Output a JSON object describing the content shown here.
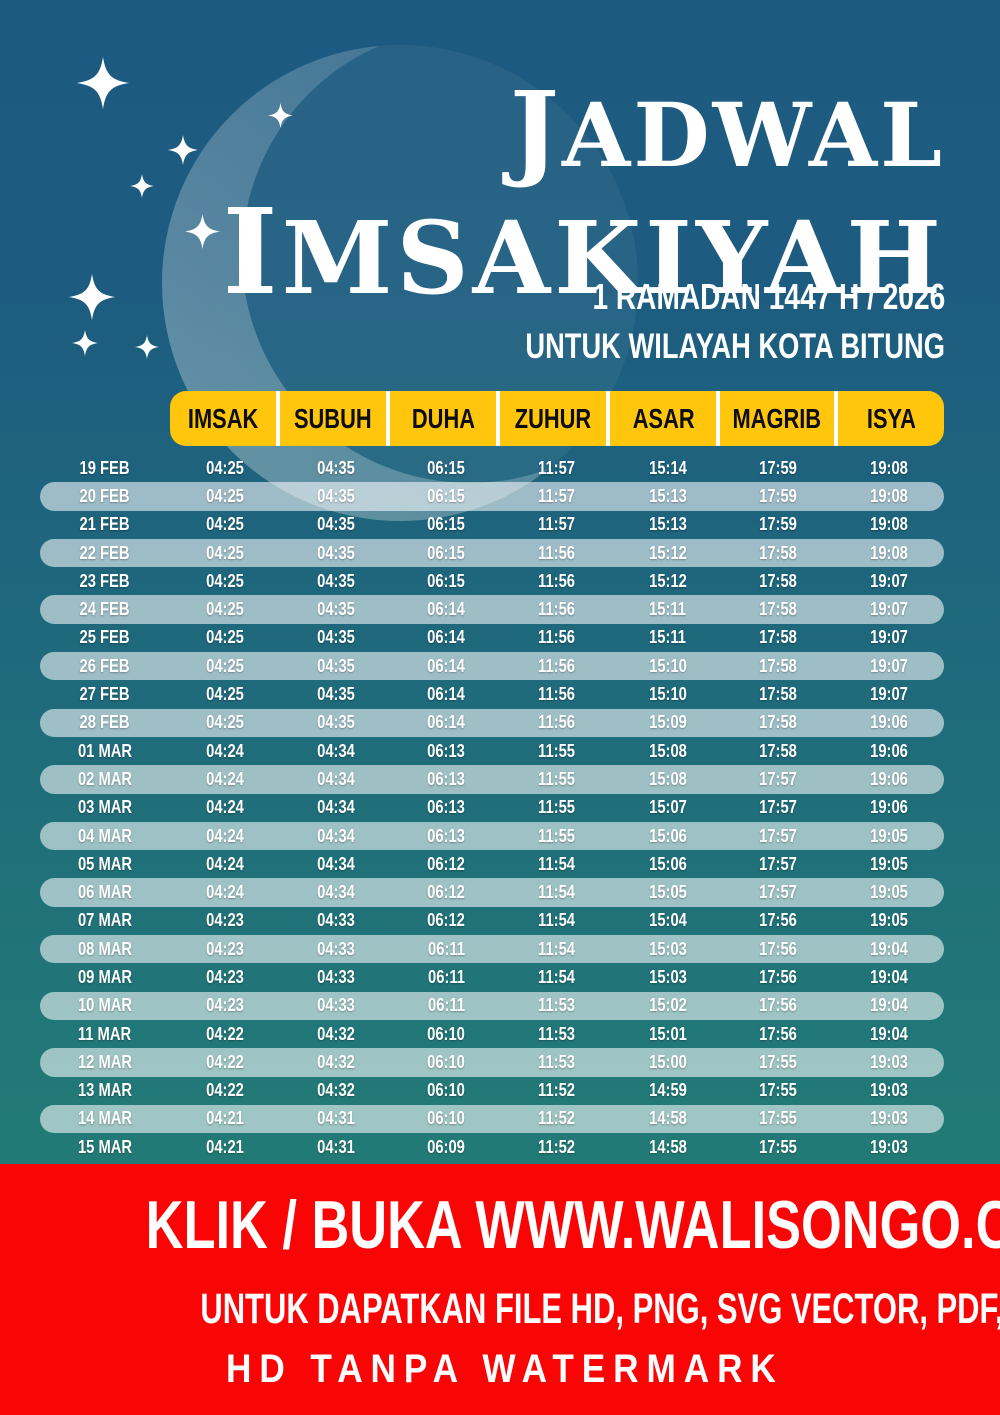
{
  "poster": {
    "title_line1": "JADWAL",
    "title_line2": "IMSAKIYAH",
    "subtitle_line1": "1 RAMADAN 1447 H / 2026",
    "subtitle_line2": "UNTUK WILAYAH KOTA BITUNG"
  },
  "table": {
    "columns": [
      "IMSAK",
      "SUBUH",
      "DUHA",
      "ZUHUR",
      "ASAR",
      "MAGRIB",
      "ISYA"
    ],
    "rows": [
      {
        "date": "19 FEB",
        "times": [
          "04:25",
          "04:35",
          "06:15",
          "11:57",
          "15:14",
          "17:59",
          "19:08"
        ]
      },
      {
        "date": "20 FEB",
        "times": [
          "04:25",
          "04:35",
          "06:15",
          "11:57",
          "15:13",
          "17:59",
          "19:08"
        ]
      },
      {
        "date": "21 FEB",
        "times": [
          "04:25",
          "04:35",
          "06:15",
          "11:57",
          "15:13",
          "17:59",
          "19:08"
        ]
      },
      {
        "date": "22 FEB",
        "times": [
          "04:25",
          "04:35",
          "06:15",
          "11:56",
          "15:12",
          "17:58",
          "19:08"
        ]
      },
      {
        "date": "23 FEB",
        "times": [
          "04:25",
          "04:35",
          "06:15",
          "11:56",
          "15:12",
          "17:58",
          "19:07"
        ]
      },
      {
        "date": "24 FEB",
        "times": [
          "04:25",
          "04:35",
          "06:14",
          "11:56",
          "15:11",
          "17:58",
          "19:07"
        ]
      },
      {
        "date": "25 FEB",
        "times": [
          "04:25",
          "04:35",
          "06:14",
          "11:56",
          "15:11",
          "17:58",
          "19:07"
        ]
      },
      {
        "date": "26 FEB",
        "times": [
          "04:25",
          "04:35",
          "06:14",
          "11:56",
          "15:10",
          "17:58",
          "19:07"
        ]
      },
      {
        "date": "27 FEB",
        "times": [
          "04:25",
          "04:35",
          "06:14",
          "11:56",
          "15:10",
          "17:58",
          "19:07"
        ]
      },
      {
        "date": "28 FEB",
        "times": [
          "04:25",
          "04:35",
          "06:14",
          "11:56",
          "15:09",
          "17:58",
          "19:06"
        ]
      },
      {
        "date": "01 MAR",
        "times": [
          "04:24",
          "04:34",
          "06:13",
          "11:55",
          "15:08",
          "17:58",
          "19:06"
        ]
      },
      {
        "date": "02 MAR",
        "times": [
          "04:24",
          "04:34",
          "06:13",
          "11:55",
          "15:08",
          "17:57",
          "19:06"
        ]
      },
      {
        "date": "03 MAR",
        "times": [
          "04:24",
          "04:34",
          "06:13",
          "11:55",
          "15:07",
          "17:57",
          "19:06"
        ]
      },
      {
        "date": "04 MAR",
        "times": [
          "04:24",
          "04:34",
          "06:13",
          "11:55",
          "15:06",
          "17:57",
          "19:05"
        ]
      },
      {
        "date": "05 MAR",
        "times": [
          "04:24",
          "04:34",
          "06:12",
          "11:54",
          "15:06",
          "17:57",
          "19:05"
        ]
      },
      {
        "date": "06 MAR",
        "times": [
          "04:24",
          "04:34",
          "06:12",
          "11:54",
          "15:05",
          "17:57",
          "19:05"
        ]
      },
      {
        "date": "07 MAR",
        "times": [
          "04:23",
          "04:33",
          "06:12",
          "11:54",
          "15:04",
          "17:56",
          "19:05"
        ]
      },
      {
        "date": "08 MAR",
        "times": [
          "04:23",
          "04:33",
          "06:11",
          "11:54",
          "15:03",
          "17:56",
          "19:04"
        ]
      },
      {
        "date": "09 MAR",
        "times": [
          "04:23",
          "04:33",
          "06:11",
          "11:54",
          "15:03",
          "17:56",
          "19:04"
        ]
      },
      {
        "date": "10 MAR",
        "times": [
          "04:23",
          "04:33",
          "06:11",
          "11:53",
          "15:02",
          "17:56",
          "19:04"
        ]
      },
      {
        "date": "11 MAR",
        "times": [
          "04:22",
          "04:32",
          "06:10",
          "11:53",
          "15:01",
          "17:56",
          "19:04"
        ]
      },
      {
        "date": "12 MAR",
        "times": [
          "04:22",
          "04:32",
          "06:10",
          "11:53",
          "15:00",
          "17:55",
          "19:03"
        ]
      },
      {
        "date": "13 MAR",
        "times": [
          "04:22",
          "04:32",
          "06:10",
          "11:52",
          "14:59",
          "17:55",
          "19:03"
        ]
      },
      {
        "date": "14 MAR",
        "times": [
          "04:21",
          "04:31",
          "06:10",
          "11:52",
          "14:58",
          "17:55",
          "19:03"
        ]
      },
      {
        "date": "15 MAR",
        "times": [
          "04:21",
          "04:31",
          "06:09",
          "11:52",
          "14:58",
          "17:55",
          "19:03"
        ]
      }
    ]
  },
  "footer": {
    "line1": "KLIK / BUKA WWW.WALISONGO.CO.ID",
    "line2": "UNTUK DAPATKAN FILE HD, PNG, SVG VECTOR, PDF, WORD, EXCEL",
    "line3": "HD TANPA WATERMARK"
  },
  "icons": {
    "moon": "crescent-moon",
    "star": "sparkle-star"
  },
  "colors": {
    "bg_top": "#1D5A81",
    "bg_bottom": "#237E74",
    "header_yellow": "#FFC60B",
    "header_text": "#0D0D0D",
    "row_highlight": "rgba(255,255,255,0.57)",
    "footer_red": "#FA0505",
    "text_white": "#FFFFFF"
  }
}
